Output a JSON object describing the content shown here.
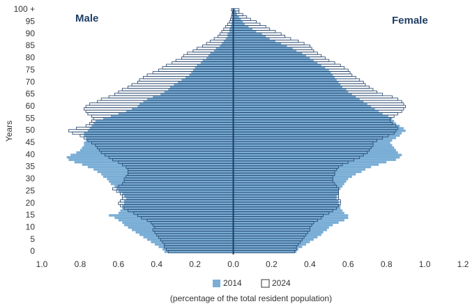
{
  "chart_data": {
    "type": "pyramid",
    "left_label": "Male",
    "right_label": "Female",
    "ylabel": "Years",
    "xlabel": "(percentage of the total resident population)",
    "xlim": [
      -1.0,
      1.2
    ],
    "xticks": [
      {
        "value": -1.0,
        "label": "1.0"
      },
      {
        "value": -0.8,
        "label": "0.8"
      },
      {
        "value": -0.6,
        "label": "0.6"
      },
      {
        "value": -0.4,
        "label": "0.4"
      },
      {
        "value": -0.2,
        "label": "0.2"
      },
      {
        "value": 0,
        "label": "0.0"
      },
      0.2,
      0.4,
      0.6,
      0.8,
      {
        "value": 1.0,
        "label": "1.0"
      },
      1.2
    ],
    "ylim": [
      0,
      100
    ],
    "yticks": [
      0,
      5,
      10,
      15,
      20,
      25,
      30,
      35,
      40,
      45,
      50,
      55,
      60,
      65,
      70,
      75,
      80,
      85,
      90,
      95,
      {
        "value": 100,
        "label": "100 +"
      }
    ],
    "ages": [
      0,
      1,
      2,
      3,
      4,
      5,
      6,
      7,
      8,
      9,
      10,
      11,
      12,
      13,
      14,
      15,
      16,
      17,
      18,
      19,
      20,
      21,
      22,
      23,
      24,
      25,
      26,
      27,
      28,
      29,
      30,
      31,
      32,
      33,
      34,
      35,
      36,
      37,
      38,
      39,
      40,
      41,
      42,
      43,
      44,
      45,
      46,
      47,
      48,
      49,
      50,
      51,
      52,
      53,
      54,
      55,
      56,
      57,
      58,
      59,
      60,
      61,
      62,
      63,
      64,
      65,
      66,
      67,
      68,
      69,
      70,
      71,
      72,
      73,
      74,
      75,
      76,
      77,
      78,
      79,
      80,
      81,
      82,
      83,
      84,
      85,
      86,
      87,
      88,
      89,
      90,
      91,
      92,
      93,
      94,
      95,
      96,
      97,
      98,
      99,
      100
    ],
    "series": [
      {
        "name": "2014",
        "color": "#7aaed6",
        "style": "filled",
        "male": [
          0.36,
          0.37,
          0.39,
          0.41,
          0.43,
          0.45,
          0.47,
          0.49,
          0.51,
          0.53,
          0.55,
          0.57,
          0.58,
          0.6,
          0.62,
          0.65,
          0.6,
          0.59,
          0.58,
          0.58,
          0.57,
          0.57,
          0.56,
          0.57,
          0.58,
          0.6,
          0.61,
          0.62,
          0.64,
          0.65,
          0.66,
          0.68,
          0.69,
          0.71,
          0.73,
          0.76,
          0.79,
          0.83,
          0.86,
          0.87,
          0.85,
          0.82,
          0.8,
          0.79,
          0.78,
          0.78,
          0.77,
          0.77,
          0.78,
          0.78,
          0.76,
          0.75,
          0.74,
          0.73,
          0.72,
          0.68,
          0.64,
          0.6,
          0.56,
          0.53,
          0.5,
          0.49,
          0.47,
          0.45,
          0.42,
          0.38,
          0.36,
          0.34,
          0.33,
          0.31,
          0.29,
          0.27,
          0.25,
          0.23,
          0.22,
          0.21,
          0.2,
          0.19,
          0.17,
          0.16,
          0.14,
          0.13,
          0.12,
          0.1,
          0.09,
          0.07,
          0.06,
          0.05,
          0.04,
          0.03,
          0.03,
          0.02,
          0.02,
          0.015,
          0.01,
          0.008,
          0.006,
          0.004,
          0.003,
          0.002,
          0.002
        ],
        "female": [
          0.33,
          0.34,
          0.36,
          0.38,
          0.4,
          0.42,
          0.44,
          0.46,
          0.47,
          0.49,
          0.5,
          0.52,
          0.55,
          0.58,
          0.6,
          0.6,
          0.58,
          0.57,
          0.56,
          0.56,
          0.55,
          0.55,
          0.54,
          0.54,
          0.55,
          0.55,
          0.56,
          0.57,
          0.58,
          0.59,
          0.6,
          0.62,
          0.64,
          0.67,
          0.69,
          0.72,
          0.76,
          0.8,
          0.85,
          0.87,
          0.88,
          0.86,
          0.85,
          0.84,
          0.83,
          0.82,
          0.83,
          0.85,
          0.87,
          0.88,
          0.9,
          0.89,
          0.87,
          0.85,
          0.84,
          0.83,
          0.81,
          0.78,
          0.76,
          0.74,
          0.72,
          0.7,
          0.68,
          0.66,
          0.64,
          0.62,
          0.6,
          0.59,
          0.57,
          0.56,
          0.55,
          0.54,
          0.53,
          0.52,
          0.51,
          0.5,
          0.48,
          0.46,
          0.44,
          0.42,
          0.4,
          0.38,
          0.36,
          0.33,
          0.31,
          0.28,
          0.25,
          0.22,
          0.19,
          0.17,
          0.15,
          0.12,
          0.1,
          0.08,
          0.06,
          0.05,
          0.04,
          0.03,
          0.02,
          0.015,
          0.01
        ]
      },
      {
        "name": "2024",
        "color": "#1f3f66",
        "style": "outline",
        "male": [
          0.34,
          0.35,
          0.36,
          0.36,
          0.37,
          0.38,
          0.39,
          0.4,
          0.41,
          0.42,
          0.41,
          0.42,
          0.43,
          0.45,
          0.48,
          0.5,
          0.52,
          0.55,
          0.57,
          0.59,
          0.6,
          0.59,
          0.58,
          0.58,
          0.59,
          0.61,
          0.63,
          0.6,
          0.58,
          0.57,
          0.57,
          0.56,
          0.55,
          0.55,
          0.55,
          0.56,
          0.58,
          0.6,
          0.63,
          0.65,
          0.67,
          0.69,
          0.7,
          0.71,
          0.72,
          0.74,
          0.76,
          0.78,
          0.8,
          0.84,
          0.86,
          0.82,
          0.77,
          0.75,
          0.74,
          0.73,
          0.74,
          0.76,
          0.77,
          0.78,
          0.77,
          0.75,
          0.71,
          0.69,
          0.65,
          0.62,
          0.6,
          0.58,
          0.55,
          0.53,
          0.5,
          0.49,
          0.47,
          0.45,
          0.42,
          0.39,
          0.37,
          0.35,
          0.32,
          0.3,
          0.27,
          0.26,
          0.24,
          0.21,
          0.19,
          0.16,
          0.14,
          0.12,
          0.1,
          0.08,
          0.07,
          0.06,
          0.05,
          0.04,
          0.03,
          0.02,
          0.015,
          0.01,
          0.007,
          0.005,
          0.01
        ],
        "female": [
          0.32,
          0.33,
          0.33,
          0.34,
          0.35,
          0.36,
          0.37,
          0.38,
          0.39,
          0.4,
          0.4,
          0.41,
          0.42,
          0.44,
          0.46,
          0.47,
          0.5,
          0.52,
          0.54,
          0.55,
          0.56,
          0.56,
          0.55,
          0.55,
          0.55,
          0.55,
          0.55,
          0.54,
          0.53,
          0.52,
          0.52,
          0.52,
          0.53,
          0.53,
          0.54,
          0.55,
          0.57,
          0.6,
          0.63,
          0.66,
          0.68,
          0.7,
          0.71,
          0.72,
          0.73,
          0.73,
          0.75,
          0.78,
          0.81,
          0.84,
          0.85,
          0.86,
          0.85,
          0.83,
          0.82,
          0.82,
          0.84,
          0.86,
          0.88,
          0.89,
          0.9,
          0.89,
          0.88,
          0.86,
          0.83,
          0.78,
          0.75,
          0.73,
          0.71,
          0.69,
          0.68,
          0.66,
          0.64,
          0.62,
          0.61,
          0.6,
          0.58,
          0.56,
          0.53,
          0.5,
          0.48,
          0.46,
          0.44,
          0.42,
          0.41,
          0.4,
          0.37,
          0.34,
          0.3,
          0.27,
          0.25,
          0.22,
          0.19,
          0.17,
          0.14,
          0.12,
          0.09,
          0.07,
          0.05,
          0.03,
          0.03
        ]
      }
    ]
  }
}
